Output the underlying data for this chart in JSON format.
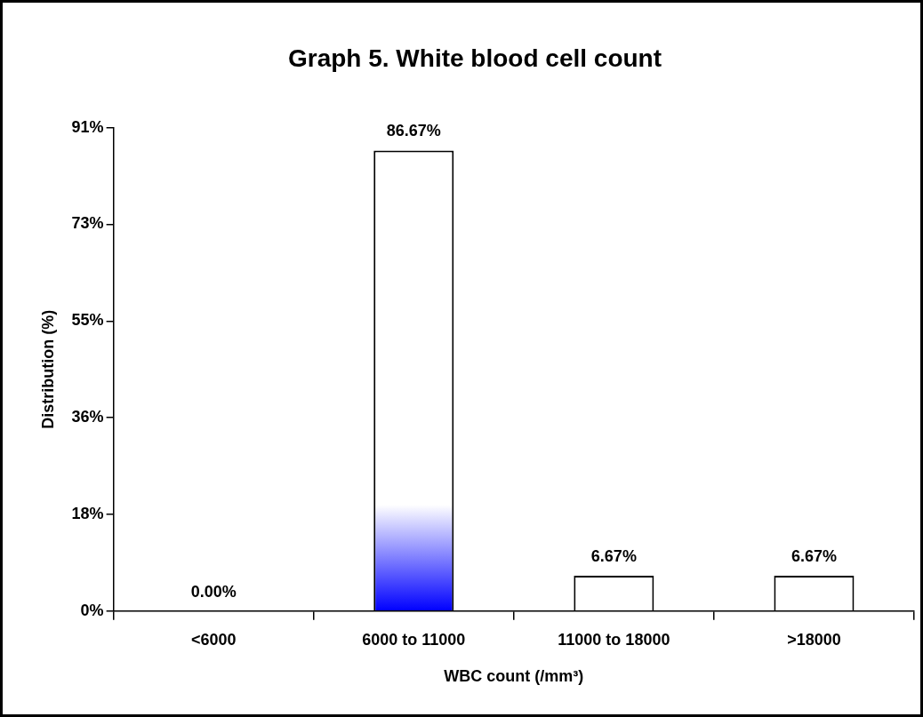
{
  "chart_data": {
    "type": "bar",
    "title": "Graph 5. White blood cell count",
    "xlabel": "WBC count (/mm³)",
    "ylabel": "Distribution (%)",
    "categories": [
      "<6000",
      "6000 to 11000",
      "11000 to 18000",
      ">18000"
    ],
    "values": [
      0,
      86.67,
      6.67,
      6.67
    ],
    "colors": [
      "#ffffff",
      "#0000ff",
      "#ffffff",
      "#ffffff"
    ],
    "value_labels": [
      "0.00%",
      "86.67%",
      "6.67%",
      "6.67%"
    ],
    "ylim": [
      0,
      91
    ],
    "yticks": [
      {
        "value": 0,
        "label": "0%"
      },
      {
        "value": 18.2,
        "label": "18%"
      },
      {
        "value": 36.4,
        "label": "36%"
      },
      {
        "value": 54.6,
        "label": "55%"
      },
      {
        "value": 72.8,
        "label": "73%"
      },
      {
        "value": 91,
        "label": "91%"
      }
    ],
    "grid": false,
    "legend": false
  }
}
